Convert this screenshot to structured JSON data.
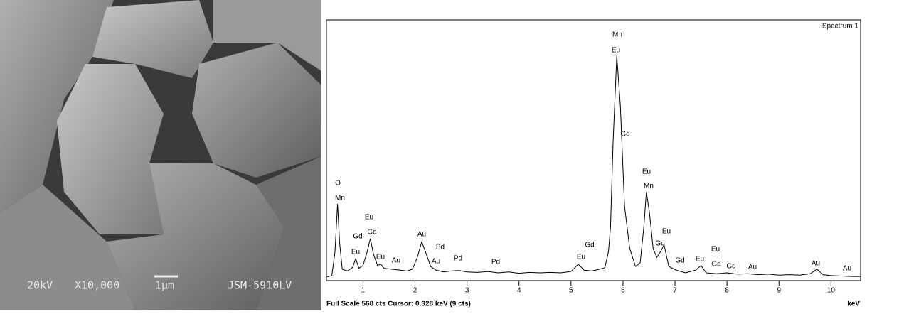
{
  "micrograph": {
    "voltage": "20kV",
    "magnification": "X10,000",
    "scale_bar": "1μm",
    "instrument": "JSM-5910LV"
  },
  "chart_data": {
    "type": "line",
    "title": "Spectrum 1",
    "x_label": "keV",
    "footer": "Full Scale 568 cts  Cursor: 0.328 keV (9 cts)",
    "color": "#000000",
    "xlim": [
      0.31,
      10.57
    ],
    "ylim": [
      0,
      568
    ],
    "xticks": [
      1,
      2,
      3,
      4,
      5,
      6,
      7,
      8,
      9,
      10
    ],
    "x": [
      0.31,
      0.4,
      0.46,
      0.51,
      0.55,
      0.6,
      0.7,
      0.8,
      0.86,
      0.92,
      1.0,
      1.08,
      1.14,
      1.2,
      1.28,
      1.34,
      1.4,
      1.55,
      1.7,
      1.85,
      1.95,
      2.05,
      2.13,
      2.2,
      2.3,
      2.4,
      2.55,
      2.7,
      2.85,
      3.0,
      3.2,
      3.4,
      3.6,
      3.8,
      4.0,
      4.2,
      4.4,
      4.6,
      4.8,
      5.0,
      5.14,
      5.25,
      5.4,
      5.55,
      5.65,
      5.72,
      5.76,
      5.81,
      5.88,
      5.95,
      6.03,
      6.13,
      6.24,
      6.33,
      6.4,
      6.45,
      6.51,
      6.58,
      6.65,
      6.72,
      6.79,
      6.88,
      7.02,
      7.2,
      7.4,
      7.5,
      7.6,
      7.8,
      8.0,
      8.2,
      8.4,
      8.6,
      8.8,
      9.0,
      9.2,
      9.4,
      9.6,
      9.73,
      9.85,
      10.0,
      10.2,
      10.4,
      10.57
    ],
    "values": [
      5,
      8,
      60,
      165,
      80,
      22,
      18,
      26,
      45,
      24,
      30,
      60,
      89,
      55,
      30,
      33,
      24,
      22,
      20,
      18,
      22,
      50,
      82,
      60,
      28,
      20,
      16,
      18,
      19,
      16,
      15,
      17,
      14,
      16,
      13,
      15,
      14,
      15,
      14,
      17,
      33,
      20,
      18,
      22,
      25,
      60,
      114,
      300,
      490,
      378,
      160,
      67,
      28,
      36,
      114,
      191,
      145,
      67,
      48,
      60,
      75,
      28,
      20,
      14,
      20,
      30,
      14,
      12,
      14,
      11,
      12,
      10,
      11,
      9,
      10,
      9,
      12,
      22,
      10,
      8,
      7,
      6,
      6
    ],
    "annotations": [
      "O",
      "Mn",
      "Eu",
      "Gd",
      "Gd",
      "Eu",
      "Eu",
      "Au",
      "Au",
      "Pd",
      "Au",
      "Pd",
      "Pd",
      "Eu",
      "Gd",
      "Mn",
      "Eu",
      "Gd",
      "Eu",
      "Mn",
      "Eu",
      "Gd",
      "Gd",
      "Eu",
      "Eu",
      "Gd",
      "Gd",
      "Au",
      "Au",
      "Au"
    ]
  }
}
